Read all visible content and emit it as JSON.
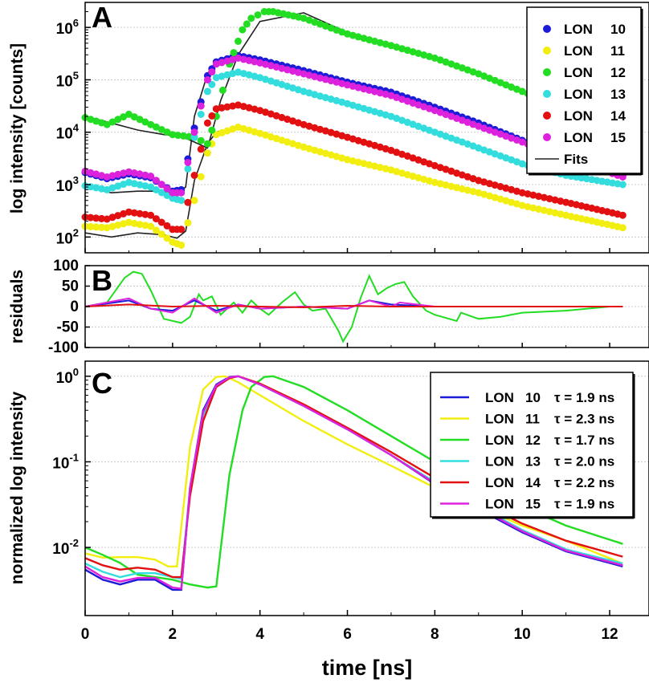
{
  "chart_data": [
    {
      "panel": "A",
      "type": "scatter",
      "ylabel": "log intensity [counts]",
      "yscale": "log",
      "ylim": [
        50,
        3000000
      ],
      "xlim": [
        0,
        12.9
      ],
      "yticks": [
        {
          "value": 100,
          "base": "10",
          "exp": "2"
        },
        {
          "value": 1000,
          "base": "10",
          "exp": "3"
        },
        {
          "value": 10000,
          "base": "10",
          "exp": "4"
        },
        {
          "value": 100000,
          "base": "10",
          "exp": "5"
        },
        {
          "value": 1000000,
          "base": "10",
          "exp": "6"
        }
      ],
      "legend_position": "top-right",
      "series": [
        {
          "name": "LON",
          "num": "10",
          "color": "#1c1cd8",
          "x": [
            0,
            0.5,
            1.0,
            1.5,
            2.0,
            2.2,
            2.5,
            2.8,
            3.0,
            3.5,
            4,
            5,
            6,
            7,
            8,
            9,
            10,
            11,
            12.3
          ],
          "y": [
            1700,
            1300,
            1600,
            1350,
            750,
            800,
            12000,
            120000,
            220000,
            290000,
            240000,
            150000,
            90000,
            58000,
            30000,
            15000,
            7000,
            3500,
            1500
          ]
        },
        {
          "name": "LON",
          "num": "11",
          "color": "#f2ee10",
          "x": [
            0,
            0.5,
            1.0,
            1.5,
            2.0,
            2.2,
            2.5,
            2.8,
            3.0,
            3.5,
            4,
            5,
            6,
            7,
            8,
            9,
            10,
            11,
            12.3
          ],
          "y": [
            160,
            150,
            190,
            160,
            80,
            70,
            500,
            4000,
            9000,
            12500,
            9500,
            5200,
            3000,
            1900,
            1100,
            700,
            400,
            260,
            150
          ]
        },
        {
          "name": "LON",
          "num": "12",
          "color": "#22dd22",
          "x": [
            0,
            0.5,
            1.0,
            1.5,
            2.0,
            2.5,
            2.8,
            3.0,
            3.3,
            3.6,
            3.8,
            4.1,
            4.3,
            5,
            6,
            7,
            8,
            9,
            10,
            11,
            12.3
          ],
          "y": [
            19000,
            14000,
            22000,
            14000,
            9000,
            8000,
            6000,
            20000,
            200000,
            900000,
            1500000,
            2000000,
            2000000,
            1500000,
            750000,
            450000,
            260000,
            130000,
            60000,
            28000,
            10000
          ]
        },
        {
          "name": "LON",
          "num": "13",
          "color": "#33dddd",
          "x": [
            0,
            0.5,
            1.0,
            1.5,
            2.0,
            2.2,
            2.5,
            2.8,
            3.0,
            3.5,
            4,
            5,
            6,
            7,
            8,
            9,
            10,
            11,
            12.3
          ],
          "y": [
            950,
            800,
            1100,
            900,
            550,
            500,
            8000,
            60000,
            110000,
            140000,
            110000,
            60000,
            35000,
            20000,
            10000,
            5000,
            2500,
            1500,
            1000
          ]
        },
        {
          "name": "LON",
          "num": "14",
          "color": "#e21010",
          "x": [
            0,
            0.5,
            1.0,
            1.5,
            2.0,
            2.2,
            2.5,
            2.8,
            3.0,
            3.5,
            4,
            5,
            6,
            7,
            8,
            9,
            10,
            11,
            12.3
          ],
          "y": [
            240,
            220,
            300,
            260,
            140,
            140,
            1500,
            15000,
            28000,
            33000,
            26000,
            14000,
            8000,
            4500,
            2300,
            1200,
            700,
            460,
            260
          ]
        },
        {
          "name": "LON",
          "num": "15",
          "color": "#dd22dd",
          "x": [
            0,
            0.5,
            1.0,
            1.5,
            2.0,
            2.2,
            2.5,
            2.8,
            3.0,
            3.5,
            4,
            5,
            6,
            7,
            8,
            9,
            10,
            11,
            12.3
          ],
          "y": [
            1800,
            1400,
            1750,
            1450,
            700,
            700,
            10000,
            100000,
            200000,
            260000,
            210000,
            130000,
            80000,
            50000,
            26000,
            13000,
            6500,
            3200,
            1400
          ]
        }
      ],
      "fit_label": "Fits",
      "fit_color": "#222222",
      "fits": [
        {
          "x": [
            0,
            0.6,
            1.2,
            1.8,
            2.1,
            2.2,
            2.5,
            2.8,
            3.1,
            3.5,
            4,
            5,
            6,
            7,
            8,
            9,
            10,
            11,
            12.3
          ],
          "y": [
            20000,
            15000,
            11000,
            9000,
            8500,
            8300,
            6500,
            5000,
            40000,
            300000,
            1300000,
            1900000,
            800000,
            450000,
            260000,
            130000,
            60000,
            28000,
            10000
          ]
        },
        {
          "x": [
            0,
            0.6,
            1.2,
            1.8,
            2.1,
            2.3,
            2.5,
            2.8,
            3.0,
            3.5,
            4,
            5,
            6,
            7,
            8,
            9,
            10,
            11,
            12.3
          ],
          "y": [
            900,
            700,
            750,
            750,
            650,
            900,
            20000,
            130000,
            230000,
            290000,
            240000,
            150000,
            90000,
            56000,
            30000,
            15000,
            7000,
            3500,
            1500
          ]
        },
        {
          "x": [
            0,
            0.6,
            1.2,
            1.8,
            2.1,
            2.3,
            2.5,
            2.8,
            3.0,
            3.5,
            4,
            5,
            6,
            7,
            8,
            9,
            10,
            11,
            12.3
          ],
          "y": [
            120,
            100,
            120,
            110,
            95,
            130,
            1200,
            6000,
            10000,
            12500,
            9500,
            5200,
            3000,
            1900,
            1100,
            700,
            400,
            260,
            150
          ]
        }
      ]
    },
    {
      "panel": "B",
      "type": "line",
      "ylabel": "residuals",
      "ylim": [
        -100,
        100
      ],
      "xlim": [
        0,
        12.9
      ],
      "yticks": [
        -100,
        -50,
        0,
        50,
        100
      ],
      "series": [
        {
          "name": "LON 12",
          "color": "#22dd22",
          "x": [
            0,
            0.5,
            0.9,
            1.1,
            1.3,
            1.5,
            1.8,
            2.2,
            2.4,
            2.6,
            2.7,
            2.9,
            3.1,
            3.4,
            3.6,
            3.8,
            4.0,
            4.2,
            4.5,
            4.8,
            5.0,
            5.2,
            5.5,
            5.8,
            5.9,
            6.1,
            6.3,
            6.5,
            6.7,
            6.9,
            7.1,
            7.3,
            7.5,
            7.8,
            8.0,
            8.5,
            8.6,
            9.0,
            9.5,
            10,
            11,
            12,
            12.3
          ],
          "y": [
            0,
            10,
            70,
            85,
            80,
            40,
            -30,
            -40,
            -25,
            30,
            15,
            25,
            -20,
            10,
            -15,
            15,
            -5,
            -20,
            10,
            35,
            5,
            -10,
            -5,
            -60,
            -85,
            -50,
            20,
            75,
            30,
            45,
            55,
            60,
            25,
            -10,
            -20,
            -35,
            -15,
            -30,
            -25,
            -15,
            -10,
            0,
            0
          ]
        },
        {
          "name": "LON 10",
          "color": "#1c1cd8",
          "x": [
            0,
            1,
            1.5,
            2,
            2.5,
            3,
            3.5,
            4,
            5,
            6,
            6.5,
            7,
            8,
            9,
            10,
            11,
            12.3
          ],
          "y": [
            0,
            15,
            -5,
            -10,
            15,
            -10,
            5,
            -5,
            0,
            -5,
            15,
            5,
            0,
            0,
            0,
            0,
            0
          ]
        },
        {
          "name": "LON 15",
          "color": "#dd22dd",
          "x": [
            0,
            1,
            1.5,
            2,
            2.5,
            3,
            3.5,
            4,
            5,
            6,
            6.5,
            7,
            7.2,
            8,
            9,
            10,
            11,
            12.3
          ],
          "y": [
            0,
            20,
            -5,
            -15,
            20,
            -15,
            5,
            -5,
            0,
            -5,
            15,
            0,
            10,
            0,
            0,
            0,
            0,
            0
          ]
        },
        {
          "name": "LON 14",
          "color": "#e21010",
          "x": [
            0,
            1,
            2,
            3,
            4,
            5,
            6,
            7,
            8,
            9,
            10,
            11,
            12.3
          ],
          "y": [
            0,
            5,
            0,
            2,
            0,
            -2,
            2,
            0,
            0,
            0,
            0,
            0,
            0
          ]
        }
      ]
    },
    {
      "panel": "C",
      "type": "line",
      "ylabel": "normalized log intensity",
      "xlabel": "time [ns]",
      "yscale": "log",
      "ylim": [
        0.0016,
        1.5
      ],
      "xlim": [
        0,
        12.9
      ],
      "xticks": [
        0,
        2,
        4,
        6,
        8,
        10,
        12
      ],
      "yticks": [
        {
          "value": 0.01,
          "base": "10",
          "exp": "-2"
        },
        {
          "value": 0.1,
          "base": "10",
          "exp": "-1"
        },
        {
          "value": 1,
          "base": "10",
          "exp": "0"
        }
      ],
      "legend_position": "top-right",
      "series": [
        {
          "name": "LON",
          "num": "10",
          "tau": "τ = 1.9 ns",
          "color": "#1c1cd8",
          "x": [
            0,
            0.4,
            0.8,
            1.2,
            1.6,
            2.0,
            2.2,
            2.4,
            2.7,
            3.0,
            3.3,
            3.5,
            4,
            5,
            6,
            7,
            8,
            9,
            10,
            11,
            12.3
          ],
          "y": [
            0.0055,
            0.0042,
            0.0037,
            0.0042,
            0.0042,
            0.0032,
            0.0032,
            0.05,
            0.4,
            0.8,
            0.98,
            1.0,
            0.8,
            0.45,
            0.24,
            0.12,
            0.055,
            0.028,
            0.015,
            0.009,
            0.006
          ]
        },
        {
          "name": "LON",
          "num": "11",
          "tau": "τ = 2.3 ns",
          "color": "#f2ee10",
          "x": [
            0,
            0.4,
            0.8,
            1.2,
            1.6,
            1.9,
            2.1,
            2.4,
            2.7,
            3.0,
            3.2,
            3.5,
            4,
            5,
            6,
            7,
            8,
            9,
            10,
            11,
            12.3
          ],
          "y": [
            0.0085,
            0.0076,
            0.0077,
            0.0077,
            0.0072,
            0.006,
            0.006,
            0.15,
            0.7,
            0.98,
            1.0,
            0.85,
            0.6,
            0.3,
            0.16,
            0.09,
            0.05,
            0.03,
            0.018,
            0.012,
            0.0065
          ]
        },
        {
          "name": "LON",
          "num": "12",
          "tau": "τ = 1.7 ns",
          "color": "#22dd22",
          "x": [
            0,
            0.4,
            0.8,
            1.2,
            1.6,
            2.0,
            2.4,
            2.8,
            3.0,
            3.3,
            3.6,
            3.8,
            4.1,
            4.3,
            5,
            6,
            7,
            8,
            9,
            10,
            11,
            12.3
          ],
          "y": [
            0.01,
            0.0082,
            0.0066,
            0.0048,
            0.0045,
            0.0042,
            0.0037,
            0.0034,
            0.0035,
            0.07,
            0.4,
            0.75,
            0.98,
            1.0,
            0.75,
            0.4,
            0.2,
            0.1,
            0.055,
            0.03,
            0.018,
            0.011
          ]
        },
        {
          "name": "LON",
          "num": "13",
          "tau": "τ = 2.0 ns",
          "color": "#33dddd",
          "x": [
            0,
            0.4,
            0.8,
            1.2,
            1.6,
            2.0,
            2.2,
            2.4,
            2.7,
            3.0,
            3.3,
            3.5,
            4,
            5,
            6,
            7,
            8,
            9,
            10,
            11,
            12.3
          ],
          "y": [
            0.0065,
            0.0052,
            0.0045,
            0.005,
            0.005,
            0.0045,
            0.0043,
            0.05,
            0.35,
            0.75,
            0.95,
            1.0,
            0.8,
            0.45,
            0.24,
            0.12,
            0.058,
            0.03,
            0.016,
            0.0095,
            0.0065
          ]
        },
        {
          "name": "LON",
          "num": "14",
          "tau": "τ = 2.2 ns",
          "color": "#e21010",
          "x": [
            0,
            0.4,
            0.8,
            1.2,
            1.6,
            2.0,
            2.2,
            2.4,
            2.7,
            3.0,
            3.3,
            3.5,
            4,
            5,
            6,
            7,
            8,
            9,
            10,
            11,
            12.3
          ],
          "y": [
            0.0075,
            0.0062,
            0.0055,
            0.0058,
            0.0055,
            0.0045,
            0.0045,
            0.04,
            0.3,
            0.75,
            0.95,
            1.0,
            0.82,
            0.47,
            0.25,
            0.13,
            0.065,
            0.034,
            0.019,
            0.012,
            0.0078
          ]
        },
        {
          "name": "LON",
          "num": "15",
          "tau": "τ = 1.9 ns",
          "color": "#dd22dd",
          "x": [
            0,
            0.4,
            0.8,
            1.2,
            1.6,
            2.0,
            2.2,
            2.4,
            2.7,
            3.0,
            3.3,
            3.5,
            4,
            5,
            6,
            7,
            8,
            9,
            10,
            11,
            12.3
          ],
          "y": [
            0.006,
            0.0045,
            0.004,
            0.0044,
            0.0044,
            0.0034,
            0.0033,
            0.05,
            0.38,
            0.78,
            0.97,
            1.0,
            0.8,
            0.45,
            0.24,
            0.12,
            0.056,
            0.029,
            0.0155,
            0.0092,
            0.0062
          ]
        }
      ]
    }
  ],
  "panel_labels": {
    "a": "A",
    "b": "B",
    "c": "C"
  }
}
